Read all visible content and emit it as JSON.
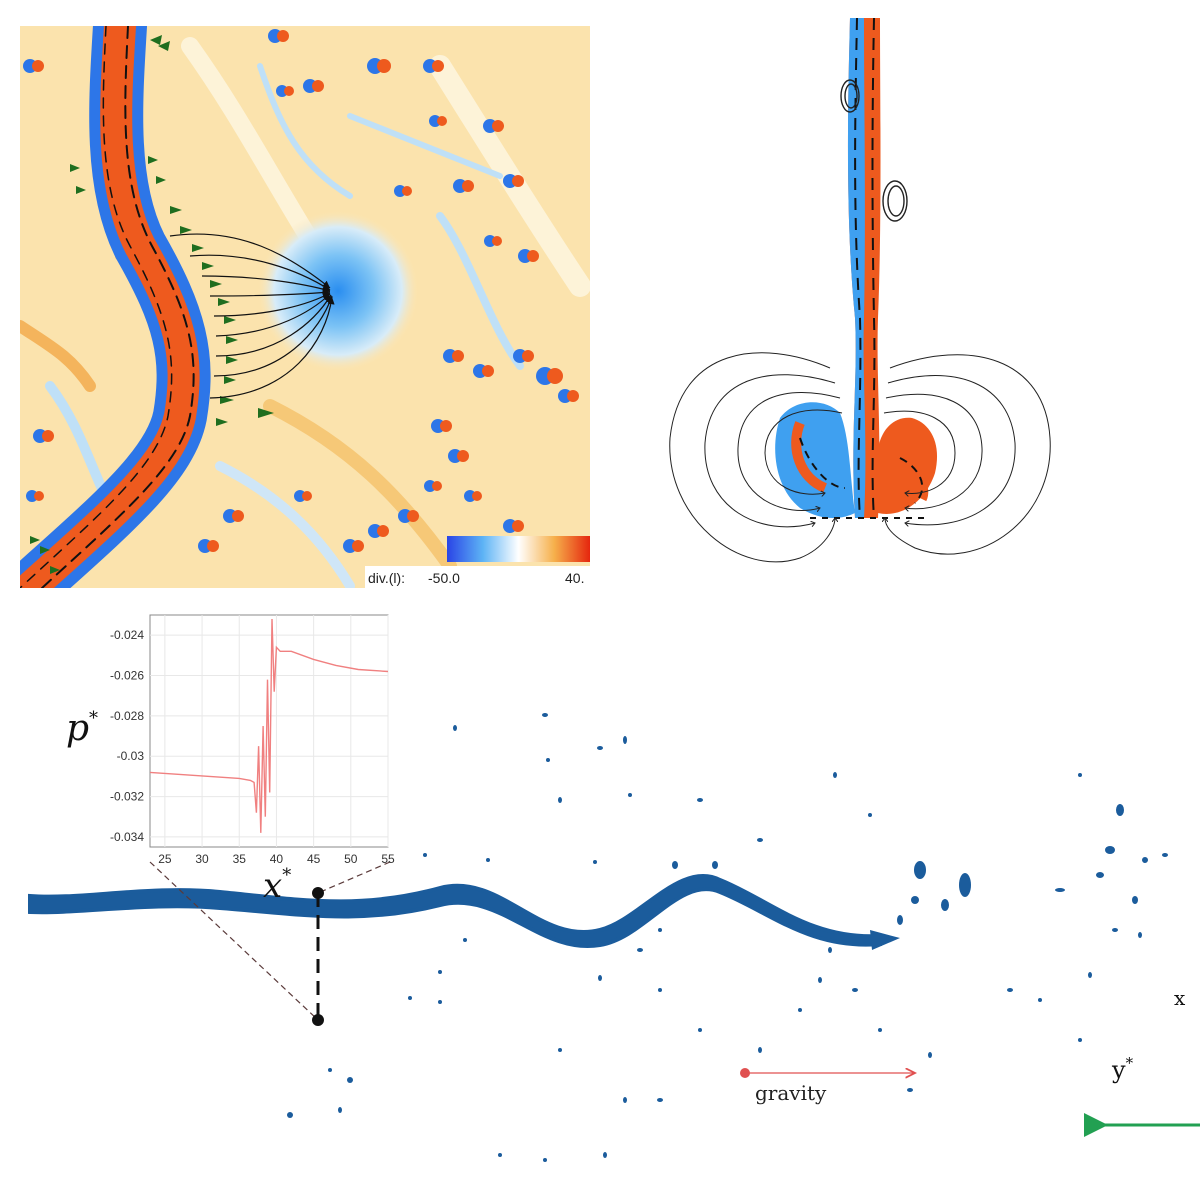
{
  "panel_a": {
    "colorbar": {
      "label": "div.(l):",
      "min_label": "-50.0",
      "max_label": "40.",
      "colors": [
        "#2a44e6",
        "#5db3f5",
        "#ffffff",
        "#f6b04b",
        "#e5260e"
      ]
    }
  },
  "panel_c": {
    "inset": {
      "ylabel": "p",
      "ylabel_sup": "*",
      "xlabel": "x",
      "xlabel_sup": "*"
    },
    "gravity_label": "gravity",
    "y_axis_label": "y",
    "y_axis_sup": "*",
    "x_axis_label_partial": "x",
    "colors": {
      "jet": "#1b5c9c",
      "inset_line": "#f08080",
      "gravity_arrow": "#e05050",
      "y_arrow": "#22a052"
    }
  },
  "chart_data": {
    "type": "line",
    "xlabel": "x*",
    "ylabel": "p*",
    "xlim": [
      23,
      55
    ],
    "ylim": [
      -0.0345,
      -0.023
    ],
    "x_ticks": [
      25,
      30,
      35,
      40,
      45,
      50,
      55
    ],
    "y_ticks": [
      -0.024,
      -0.026,
      -0.028,
      -0.03,
      -0.032,
      -0.034
    ],
    "x_tick_labels": [
      "25",
      "30",
      "35",
      "40",
      "45",
      "50",
      "55"
    ],
    "y_tick_labels": [
      "-0.024",
      "-0.026",
      "-0.028",
      "-0.03",
      "-0.032",
      "-0.034"
    ],
    "grid": true,
    "series": [
      {
        "x": [
          23,
          27,
          31,
          35,
          36.5,
          37,
          37.3,
          37.6,
          37.9,
          38.2,
          38.5,
          38.8,
          39.1,
          39.4,
          39.7,
          40.0,
          40.5,
          42,
          45,
          48,
          51,
          55
        ],
        "y": [
          -0.0308,
          -0.0309,
          -0.031,
          -0.0311,
          -0.0312,
          -0.0313,
          -0.0328,
          -0.0295,
          -0.0338,
          -0.0285,
          -0.033,
          -0.0262,
          -0.0318,
          -0.0232,
          -0.0268,
          -0.0246,
          -0.0248,
          -0.0248,
          -0.0252,
          -0.0255,
          -0.0257,
          -0.0258
        ]
      }
    ]
  }
}
